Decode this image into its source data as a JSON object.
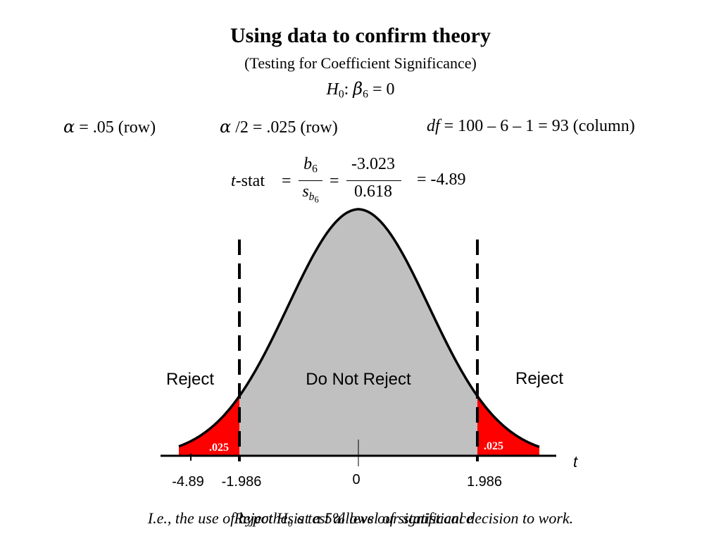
{
  "slide": {
    "title": "Using data to confirm theory",
    "subtitle": "(Testing for Coefficient Significance)",
    "hypothesis": {
      "H": "H",
      "h_sub": "0",
      "colon": ":",
      "beta": "β",
      "beta_sub": "6",
      "equals": "= 0"
    },
    "params": {
      "alpha_symbol": "α",
      "alpha_text": " = .05 (row)",
      "alpha2_symbol": "α",
      "alpha2_text": " /2 = .025 (row)",
      "df_symbol": "df",
      "df_text": " = 100 – 6 – 1 = 93 (column)"
    },
    "formula": {
      "t": "t",
      "stat": "-stat",
      "eq1": "=",
      "b": "b",
      "b_sub": "6",
      "s": "s",
      "s_sub_b": "b",
      "s_sub_6": "6",
      "eq2": "=",
      "numerator": "-3.023",
      "denominator": "0.618",
      "result": "= -4.89"
    },
    "footer": {
      "line_a": "I.e., the use of hypothesis test allows our statistical decision to work.",
      "line_b": "Reject H₀ at a 5% level of significance"
    }
  },
  "diagram": {
    "regions": {
      "reject_left": "Reject",
      "middle": "Do Not Reject",
      "reject_right": "Reject"
    },
    "tail_left_label": ".025",
    "tail_right_label": ".025",
    "axis_label": "t",
    "ticks": {
      "neg_stat": "-4.89",
      "neg_crit": "-1.986",
      "zero": "0",
      "pos_crit": "1.986"
    },
    "colors": {
      "tail": "#ff0000",
      "body": "#c0c0c0",
      "curve": "#000000"
    }
  }
}
